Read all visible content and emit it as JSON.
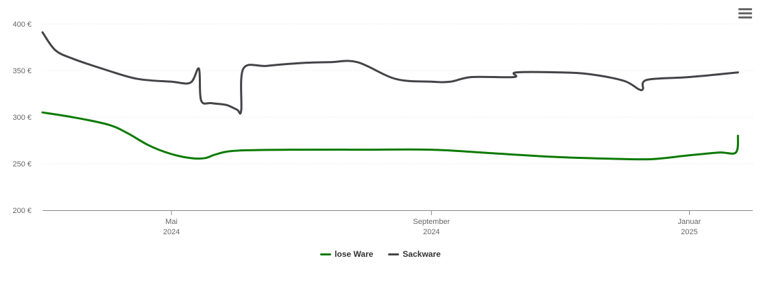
{
  "chart_data": {
    "type": "line",
    "title": "",
    "xlabel": "",
    "ylabel": "",
    "ylim": [
      200,
      400
    ],
    "y_ticks": [
      "200 €",
      "250 €",
      "300 €",
      "350 €",
      "400 €"
    ],
    "y_tick_values": [
      200,
      250,
      300,
      350,
      400
    ],
    "x_range": [
      "2024-03-01",
      "2025-01-31"
    ],
    "x_ticks": [
      {
        "date": "2024-05-01",
        "line1": "Mai",
        "line2": "2024"
      },
      {
        "date": "2024-09-01",
        "line1": "September",
        "line2": "2024"
      },
      {
        "date": "2025-01-01",
        "line1": "Januar",
        "line2": "2025"
      }
    ],
    "grid": true,
    "legend_position": "bottom-center",
    "series": [
      {
        "name": "lose Ware",
        "color": "#0a7a00",
        "points": [
          [
            "2024-03-01",
            305
          ],
          [
            "2024-03-15",
            300
          ],
          [
            "2024-04-01",
            292
          ],
          [
            "2024-04-10",
            283
          ],
          [
            "2024-04-20",
            270
          ],
          [
            "2024-04-30",
            261
          ],
          [
            "2024-05-10",
            256
          ],
          [
            "2024-05-17",
            256
          ],
          [
            "2024-05-22",
            260
          ],
          [
            "2024-06-01",
            264
          ],
          [
            "2024-07-01",
            265
          ],
          [
            "2024-08-01",
            265
          ],
          [
            "2024-09-01",
            265
          ],
          [
            "2024-10-01",
            261
          ],
          [
            "2024-11-01",
            257
          ],
          [
            "2024-12-01",
            255
          ],
          [
            "2024-12-15",
            255
          ],
          [
            "2025-01-01",
            259
          ],
          [
            "2025-01-15",
            262
          ],
          [
            "2025-01-23",
            262
          ],
          [
            "2025-01-24",
            280
          ]
        ]
      },
      {
        "name": "Sackware",
        "color": "#434348",
        "points": [
          [
            "2024-03-01",
            391
          ],
          [
            "2024-03-07",
            372
          ],
          [
            "2024-03-15",
            363
          ],
          [
            "2024-04-01",
            350
          ],
          [
            "2024-04-15",
            341
          ],
          [
            "2024-05-01",
            338
          ],
          [
            "2024-05-10",
            337
          ],
          [
            "2024-05-14",
            352
          ],
          [
            "2024-05-15",
            318
          ],
          [
            "2024-05-20",
            315
          ],
          [
            "2024-05-27",
            313
          ],
          [
            "2024-06-01",
            308
          ],
          [
            "2024-06-03",
            307
          ],
          [
            "2024-06-04",
            352
          ],
          [
            "2024-06-15",
            355
          ],
          [
            "2024-07-01",
            358
          ],
          [
            "2024-07-15",
            359
          ],
          [
            "2024-07-28",
            359
          ],
          [
            "2024-08-15",
            341
          ],
          [
            "2024-09-01",
            338
          ],
          [
            "2024-09-10",
            338
          ],
          [
            "2024-09-20",
            343
          ],
          [
            "2024-10-10",
            343
          ],
          [
            "2024-10-11",
            348
          ],
          [
            "2024-11-01",
            348
          ],
          [
            "2024-11-15",
            346
          ],
          [
            "2024-12-01",
            339
          ],
          [
            "2024-12-08",
            330
          ],
          [
            "2024-12-10",
            330
          ],
          [
            "2024-12-12",
            340
          ],
          [
            "2025-01-01",
            343
          ],
          [
            "2025-01-24",
            348
          ]
        ]
      }
    ]
  }
}
